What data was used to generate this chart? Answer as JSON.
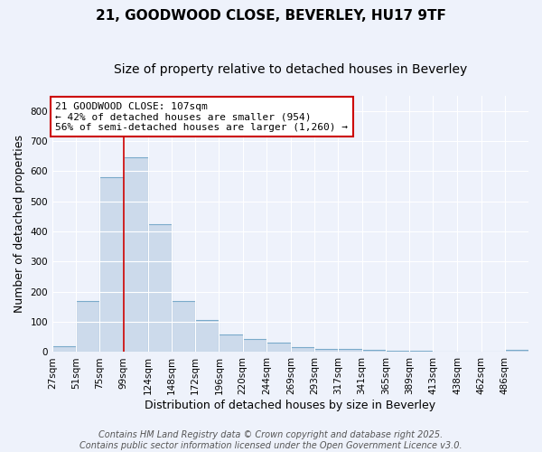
{
  "title_line1": "21, GOODWOOD CLOSE, BEVERLEY, HU17 9TF",
  "title_line2": "Size of property relative to detached houses in Beverley",
  "xlabel": "Distribution of detached houses by size in Beverley",
  "ylabel": "Number of detached properties",
  "bar_color": "#ccdaeb",
  "bar_edge_color": "#7aaaca",
  "background_color": "#eef2fb",
  "grid_color": "#ffffff",
  "red_line_x": 99,
  "annotation_text": "21 GOODWOOD CLOSE: 107sqm\n← 42% of detached houses are smaller (954)\n56% of semi-detached houses are larger (1,260) →",
  "annotation_box_facecolor": "#ffffff",
  "annotation_border_color": "#cc0000",
  "footer_line1": "Contains HM Land Registry data © Crown copyright and database right 2025.",
  "footer_line2": "Contains public sector information licensed under the Open Government Licence v3.0.",
  "bins": [
    27,
    51,
    75,
    99,
    124,
    148,
    172,
    196,
    220,
    244,
    269,
    293,
    317,
    341,
    365,
    389,
    413,
    438,
    462,
    486,
    510
  ],
  "counts": [
    20,
    168,
    580,
    645,
    425,
    170,
    105,
    57,
    42,
    32,
    15,
    10,
    9,
    6,
    4,
    3,
    2,
    1,
    1,
    6
  ],
  "ylim": [
    0,
    850
  ],
  "yticks": [
    0,
    100,
    200,
    300,
    400,
    500,
    600,
    700,
    800
  ],
  "title_fontsize": 11,
  "subtitle_fontsize": 10,
  "axis_label_fontsize": 9,
  "tick_fontsize": 7.5,
  "annotation_fontsize": 8,
  "footer_fontsize": 7
}
